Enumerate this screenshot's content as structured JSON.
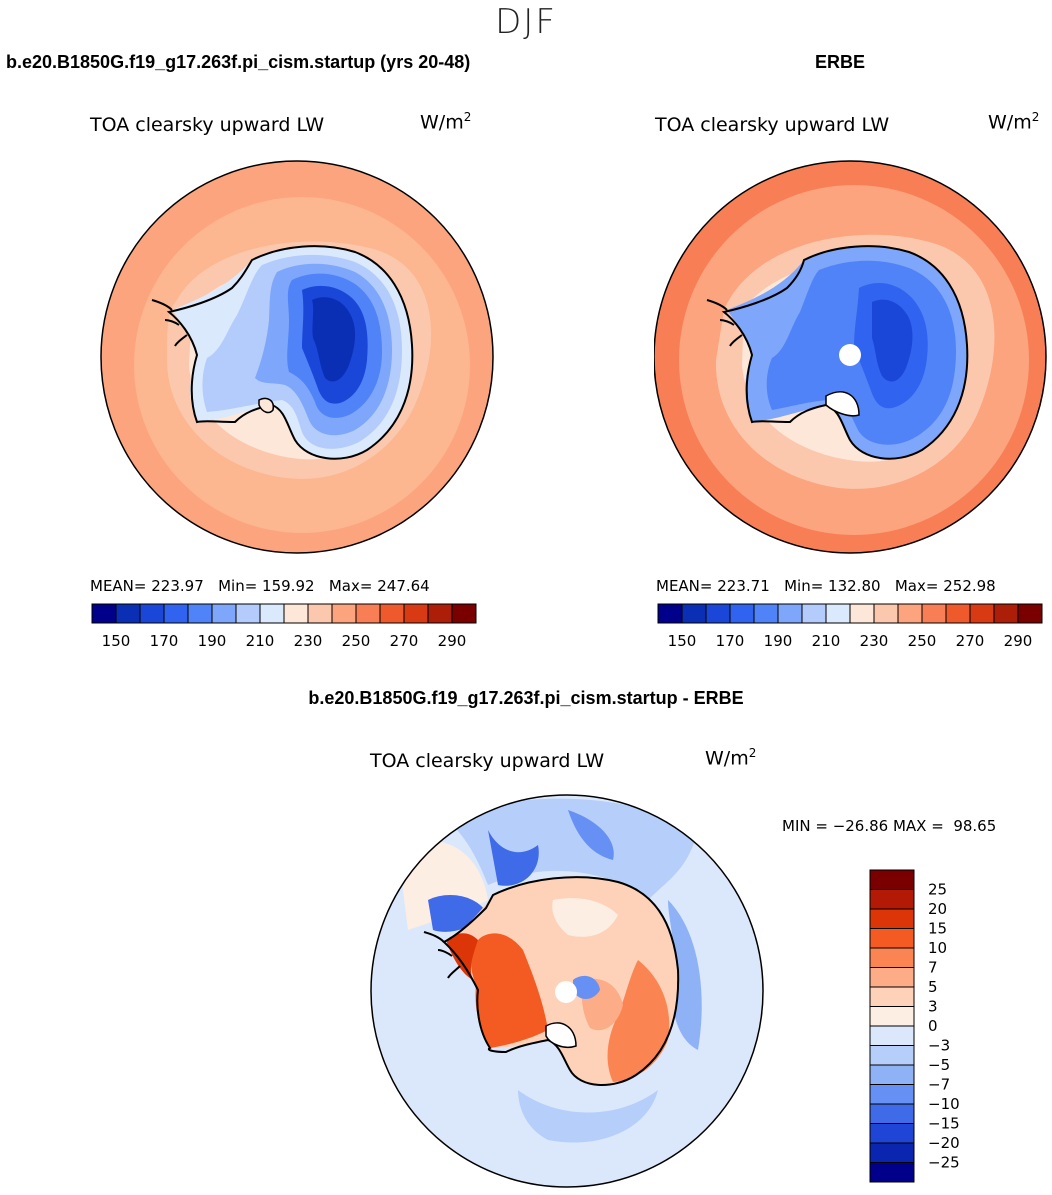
{
  "figure": {
    "season": "DJF",
    "colors": {
      "coast": "#000000",
      "background": "#ffffff"
    }
  },
  "chart_data": [
    {
      "type": "heatmap",
      "projection": "south-polar-stereographic",
      "title": "b.e20.B1850G.f19_g17.263f.pi_cism.startup (yrs 20-48)",
      "variable": "TOA clearsky upward LW",
      "units": "W/m",
      "units_sup": "2",
      "stats": {
        "mean_label": "MEAN=",
        "mean": "223.97",
        "min_label": "Min=",
        "min": "159.92",
        "max_label": "Max=",
        "max": "247.64"
      },
      "colorbar": {
        "tick_labels": [
          "150",
          "170",
          "190",
          "210",
          "230",
          "250",
          "270",
          "290"
        ],
        "colors": [
          "#00008b",
          "#0a2fb5",
          "#1b47d8",
          "#2f63f0",
          "#4f83f7",
          "#7ea6fa",
          "#b3ccfb",
          "#dbe9fc",
          "#fde7d9",
          "#fcc8ad",
          "#fba47e",
          "#f87e55",
          "#ee5a2c",
          "#d83a14",
          "#ad1e08",
          "#7a0000"
        ]
      }
    },
    {
      "type": "heatmap",
      "projection": "south-polar-stereographic",
      "title": "ERBE",
      "variable": "TOA clearsky upward LW",
      "units": "W/m",
      "units_sup": "2",
      "stats": {
        "mean_label": "MEAN=",
        "mean": "223.71",
        "min_label": "Min=",
        "min": "132.80",
        "max_label": "Max=",
        "max": "252.98"
      },
      "colorbar": {
        "tick_labels": [
          "150",
          "170",
          "190",
          "210",
          "230",
          "250",
          "270",
          "290"
        ],
        "colors": [
          "#00008b",
          "#0a2fb5",
          "#1b47d8",
          "#2f63f0",
          "#4f83f7",
          "#7ea6fa",
          "#b3ccfb",
          "#dbe9fc",
          "#fde7d9",
          "#fcc8ad",
          "#fba47e",
          "#f87e55",
          "#ee5a2c",
          "#d83a14",
          "#ad1e08",
          "#7a0000"
        ]
      }
    },
    {
      "type": "heatmap",
      "projection": "south-polar-stereographic",
      "title": "b.e20.B1850G.f19_g17.263f.pi_cism.startup - ERBE",
      "variable": "TOA clearsky upward LW",
      "units": "W/m",
      "units_sup": "2",
      "stats": {
        "text": "MIN = −26.86 MAX =  98.65"
      },
      "colorbar": {
        "tick_labels": [
          "25",
          "20",
          "15",
          "10",
          "7",
          "5",
          "3",
          "0",
          "−3",
          "−5",
          "−7",
          "−10",
          "−15",
          "−20",
          "−25"
        ],
        "colors": [
          "#7a0000",
          "#b21a05",
          "#dc3508",
          "#f45b22",
          "#fb8552",
          "#fcac86",
          "#fdd2b9",
          "#fdeee4",
          "#dbe8fb",
          "#b6cffa",
          "#8fb2f7",
          "#6690f4",
          "#3f6ae8",
          "#1f45d6",
          "#0a25b0",
          "#00008b"
        ]
      }
    }
  ]
}
